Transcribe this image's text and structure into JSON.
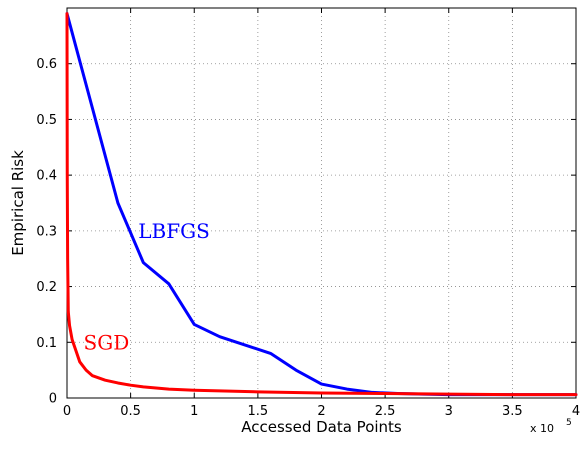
{
  "chart_data": {
    "type": "line",
    "title": "",
    "xlabel": "Accessed Data Points",
    "ylabel": "Empirical Risk",
    "x_scale_note": "x 10",
    "x_scale_exponent": "5",
    "xlim": [
      0,
      4.0
    ],
    "ylim": [
      0,
      0.7
    ],
    "x_ticks": [
      "0",
      "0.5",
      "1",
      "1.5",
      "2",
      "2.5",
      "3",
      "3.5",
      "4"
    ],
    "y_ticks": [
      "0",
      "0.1",
      "0.2",
      "0.3",
      "0.4",
      "0.5",
      "0.6"
    ],
    "x_tick_values": [
      0,
      0.5,
      1,
      1.5,
      2,
      2.5,
      3,
      3.5,
      4
    ],
    "y_tick_values": [
      0,
      0.1,
      0.2,
      0.3,
      0.4,
      0.5,
      0.6
    ],
    "grid": true,
    "legend": "none",
    "series": [
      {
        "name": "LBFGS",
        "color": "#0000ff",
        "x": [
          0,
          0.2,
          0.4,
          0.6,
          0.8,
          1.0,
          1.2,
          1.4,
          1.6,
          1.8,
          2.0,
          2.2,
          2.4,
          2.6,
          2.8,
          3.0,
          3.5,
          4.0
        ],
        "y": [
          0.69,
          0.52,
          0.35,
          0.243,
          0.205,
          0.132,
          0.11,
          0.095,
          0.08,
          0.05,
          0.025,
          0.016,
          0.01,
          0.008,
          0.007,
          0.006,
          0.006,
          0.006
        ]
      },
      {
        "name": "SGD",
        "color": "#ff0000",
        "x": [
          0,
          0.002,
          0.005,
          0.01,
          0.02,
          0.04,
          0.07,
          0.1,
          0.15,
          0.2,
          0.25,
          0.3,
          0.4,
          0.5,
          0.6,
          0.8,
          1.0,
          1.5,
          2.0,
          2.5,
          3.0,
          3.5,
          4.0
        ],
        "y": [
          0.69,
          0.4,
          0.25,
          0.155,
          0.13,
          0.105,
          0.085,
          0.065,
          0.05,
          0.04,
          0.036,
          0.032,
          0.027,
          0.023,
          0.02,
          0.016,
          0.014,
          0.011,
          0.009,
          0.008,
          0.007,
          0.006,
          0.006
        ]
      }
    ],
    "annotations": [
      {
        "text": "LBFGS",
        "x": 0.56,
        "y": 0.3,
        "color": "#0000ff"
      },
      {
        "text": "SGD",
        "x": 0.13,
        "y": 0.1,
        "color": "#ff0000"
      }
    ]
  }
}
